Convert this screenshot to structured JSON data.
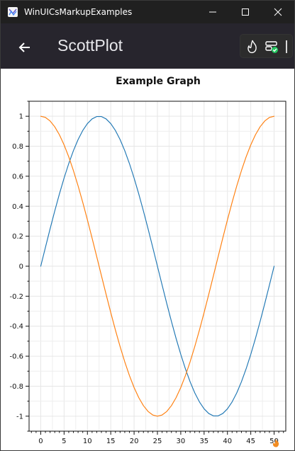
{
  "window": {
    "title": "WinUICsMarkupExamples"
  },
  "titlebar": {
    "minimize_icon": "minimize-icon",
    "maximize_icon": "maximize-icon",
    "close_icon": "close-icon"
  },
  "appbar": {
    "back_icon": "back-arrow-icon",
    "title": "ScottPlot"
  },
  "hot_reload_toolbar": {
    "flame_icon": "flame-icon",
    "status_icon": "status-check-icon",
    "status_color": "#22c55e"
  },
  "chart_data": {
    "type": "line",
    "title": "Example Graph",
    "xlabel": "",
    "ylabel": "",
    "xlim": [
      -2.5,
      52.5
    ],
    "ylim": [
      -1.1,
      1.1
    ],
    "grid": true,
    "x_ticks": [
      0,
      5,
      10,
      15,
      20,
      25,
      30,
      35,
      40,
      45,
      50
    ],
    "y_ticks": [
      1,
      0.8,
      0.6,
      0.4,
      0.2,
      0,
      -0.2,
      -0.4,
      -0.6,
      -0.8,
      -1
    ],
    "x_tick_labels": [
      "0",
      "5",
      "10",
      "15",
      "20",
      "25",
      "30",
      "35",
      "40",
      "45",
      "50"
    ],
    "y_tick_labels": [
      "1",
      "0.8",
      "0.6",
      "0.4",
      "0.2",
      "0",
      "-0.2",
      "-0.4",
      "-0.6",
      "-0.8",
      "-1"
    ],
    "series": [
      {
        "color": "#1f77b4",
        "x": [
          0,
          1,
          2,
          3,
          4,
          5,
          6,
          7,
          8,
          9,
          10,
          11,
          12,
          13,
          14,
          15,
          16,
          17,
          18,
          19,
          20,
          21,
          22,
          23,
          24,
          25,
          26,
          27,
          28,
          29,
          30,
          31,
          32,
          33,
          34,
          35,
          36,
          37,
          38,
          39,
          40,
          41,
          42,
          43,
          44,
          45,
          46,
          47,
          48,
          49,
          50
        ],
        "values": [
          0,
          0.1253,
          0.2487,
          0.3681,
          0.4818,
          0.5878,
          0.6845,
          0.7705,
          0.8443,
          0.9048,
          0.9511,
          0.9823,
          0.998,
          0.998,
          0.9823,
          0.9511,
          0.9048,
          0.8443,
          0.7705,
          0.6845,
          0.5878,
          0.4818,
          0.3681,
          0.2487,
          0.1253,
          0,
          -0.1253,
          -0.2487,
          -0.3681,
          -0.4818,
          -0.5878,
          -0.6845,
          -0.7705,
          -0.8443,
          -0.9048,
          -0.9511,
          -0.9823,
          -0.998,
          -0.998,
          -0.9823,
          -0.9511,
          -0.9048,
          -0.8443,
          -0.7705,
          -0.6845,
          -0.5878,
          -0.4818,
          -0.3681,
          -0.2487,
          -0.1253,
          0
        ]
      },
      {
        "color": "#ff7f0e",
        "x": [
          0,
          1,
          2,
          3,
          4,
          5,
          6,
          7,
          8,
          9,
          10,
          11,
          12,
          13,
          14,
          15,
          16,
          17,
          18,
          19,
          20,
          21,
          22,
          23,
          24,
          25,
          26,
          27,
          28,
          29,
          30,
          31,
          32,
          33,
          34,
          35,
          36,
          37,
          38,
          39,
          40,
          41,
          42,
          43,
          44,
          45,
          46,
          47,
          48,
          49,
          50
        ],
        "values": [
          1,
          0.9921,
          0.9686,
          0.9298,
          0.8763,
          0.809,
          0.729,
          0.6374,
          0.5358,
          0.4258,
          0.309,
          0.1874,
          0.0628,
          -0.0628,
          -0.1874,
          -0.309,
          -0.4258,
          -0.5358,
          -0.6374,
          -0.729,
          -0.809,
          -0.8763,
          -0.9298,
          -0.9686,
          -0.9921,
          -1,
          -0.9921,
          -0.9686,
          -0.9298,
          -0.8763,
          -0.809,
          -0.729,
          -0.6374,
          -0.5358,
          -0.4258,
          -0.309,
          -0.1874,
          -0.0628,
          0.0628,
          0.1874,
          0.309,
          0.4258,
          0.5358,
          0.6374,
          0.729,
          0.809,
          0.8763,
          0.9298,
          0.9686,
          0.9921,
          1
        ]
      }
    ]
  }
}
